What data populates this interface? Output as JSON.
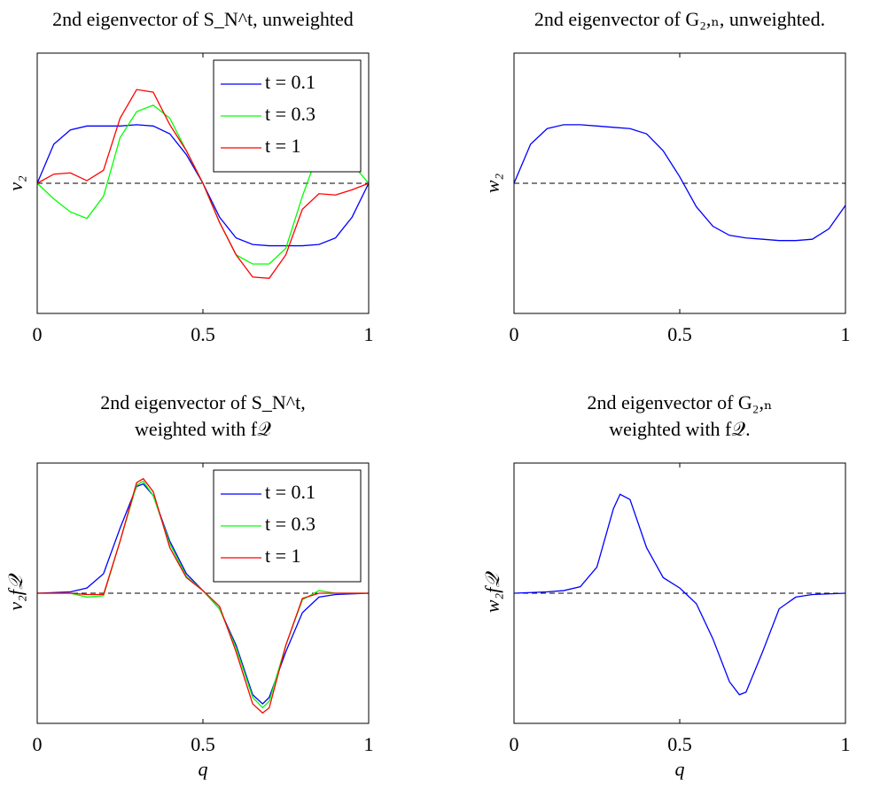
{
  "chart_data": [
    {
      "type": "line",
      "title": [
        "2nd eigenvector of S_N^t, unweighted"
      ],
      "ylabel": "v₂",
      "x": [
        0,
        0.05,
        0.1,
        0.15,
        0.2,
        0.25,
        0.3,
        0.35,
        0.4,
        0.45,
        0.5,
        0.55,
        0.6,
        0.65,
        0.7,
        0.75,
        0.8,
        0.85,
        0.9,
        0.95,
        1
      ],
      "series": [
        {
          "name": "t = 0.1",
          "color": "#0000ff",
          "values": [
            0,
            0.3,
            0.41,
            0.44,
            0.44,
            0.44,
            0.45,
            0.44,
            0.38,
            0.22,
            0,
            -0.26,
            -0.42,
            -0.47,
            -0.48,
            -0.48,
            -0.48,
            -0.47,
            -0.42,
            -0.26,
            0
          ]
        },
        {
          "name": "t = 0.3",
          "color": "#00ff00",
          "values": [
            0,
            -0.12,
            -0.22,
            -0.27,
            -0.1,
            0.35,
            0.55,
            0.6,
            0.5,
            0.25,
            0,
            -0.3,
            -0.55,
            -0.62,
            -0.62,
            -0.5,
            -0.1,
            0.25,
            0.2,
            0.15,
            0
          ]
        },
        {
          "name": "t = 1",
          "color": "#ff0000",
          "values": [
            0,
            0.07,
            0.08,
            0.02,
            0.1,
            0.5,
            0.72,
            0.7,
            0.45,
            0.25,
            0,
            -0.3,
            -0.55,
            -0.72,
            -0.73,
            -0.55,
            -0.2,
            -0.08,
            -0.09,
            -0.05,
            0
          ]
        }
      ],
      "xlim": [
        0,
        1
      ],
      "ylim": [
        -1,
        1
      ],
      "xticks": [
        0,
        0.5,
        1
      ],
      "hline": 0,
      "legend": "upper right"
    },
    {
      "type": "line",
      "title": [
        "2nd eigenvector of G₂,ₙ, unweighted."
      ],
      "ylabel": "w₂",
      "x": [
        0,
        0.05,
        0.1,
        0.15,
        0.2,
        0.25,
        0.3,
        0.35,
        0.4,
        0.45,
        0.5,
        0.55,
        0.6,
        0.65,
        0.7,
        0.75,
        0.8,
        0.85,
        0.9,
        0.95,
        1
      ],
      "series": [
        {
          "color": "#0000ff",
          "values": [
            0,
            0.3,
            0.42,
            0.45,
            0.45,
            0.44,
            0.43,
            0.42,
            0.38,
            0.25,
            0.05,
            -0.18,
            -0.33,
            -0.4,
            -0.42,
            -0.43,
            -0.44,
            -0.44,
            -0.43,
            -0.35,
            -0.17
          ]
        }
      ],
      "xlim": [
        0,
        1
      ],
      "ylim": [
        -1,
        1
      ],
      "xticks": [
        0,
        0.5,
        1
      ],
      "hline": 0
    },
    {
      "type": "line",
      "title": [
        "2nd eigenvector of S_N^t,",
        "weighted with f𝒬"
      ],
      "ylabel": "v₂f𝒬",
      "xlabel": "q",
      "x": [
        0,
        0.1,
        0.15,
        0.2,
        0.25,
        0.3,
        0.32,
        0.35,
        0.4,
        0.45,
        0.5,
        0.55,
        0.6,
        0.65,
        0.68,
        0.7,
        0.75,
        0.8,
        0.85,
        0.9,
        1
      ],
      "series": [
        {
          "name": "t = 0.1",
          "color": "#0000ff",
          "values": [
            0,
            0.01,
            0.04,
            0.15,
            0.5,
            0.82,
            0.84,
            0.75,
            0.4,
            0.15,
            0.02,
            -0.12,
            -0.4,
            -0.78,
            -0.85,
            -0.8,
            -0.45,
            -0.15,
            -0.03,
            -0.01,
            0
          ]
        },
        {
          "name": "t = 0.3",
          "color": "#00ff00",
          "values": [
            0,
            0,
            -0.03,
            -0.02,
            0.4,
            0.83,
            0.86,
            0.75,
            0.38,
            0.13,
            0.02,
            -0.12,
            -0.42,
            -0.8,
            -0.88,
            -0.83,
            -0.4,
            -0.05,
            0.02,
            0,
            0
          ]
        },
        {
          "name": "t = 1",
          "color": "#ff0000",
          "values": [
            0,
            0,
            -0.01,
            -0.01,
            0.4,
            0.85,
            0.88,
            0.78,
            0.35,
            0.12,
            0.02,
            -0.1,
            -0.45,
            -0.85,
            -0.92,
            -0.88,
            -0.4,
            -0.04,
            0,
            0,
            0
          ]
        }
      ],
      "xlim": [
        0,
        1
      ],
      "ylim": [
        -1,
        1
      ],
      "xticks": [
        0,
        0.5,
        1
      ],
      "hline": 0,
      "legend": "upper right"
    },
    {
      "type": "line",
      "title": [
        "2nd eigenvector of G₂,ₙ",
        "weighted with f𝒬."
      ],
      "ylabel": "w₂f𝒬",
      "xlabel": "q",
      "x": [
        0,
        0.1,
        0.15,
        0.2,
        0.25,
        0.3,
        0.32,
        0.35,
        0.4,
        0.45,
        0.5,
        0.55,
        0.6,
        0.65,
        0.68,
        0.7,
        0.75,
        0.8,
        0.85,
        0.9,
        1
      ],
      "series": [
        {
          "color": "#0000ff",
          "values": [
            0,
            0.01,
            0.02,
            0.05,
            0.2,
            0.65,
            0.76,
            0.72,
            0.35,
            0.12,
            0.04,
            -0.08,
            -0.35,
            -0.68,
            -0.78,
            -0.76,
            -0.45,
            -0.12,
            -0.03,
            -0.01,
            0
          ]
        }
      ],
      "xlim": [
        0,
        1
      ],
      "ylim": [
        -1,
        1
      ],
      "xticks": [
        0,
        0.5,
        1
      ],
      "hline": 0
    }
  ]
}
